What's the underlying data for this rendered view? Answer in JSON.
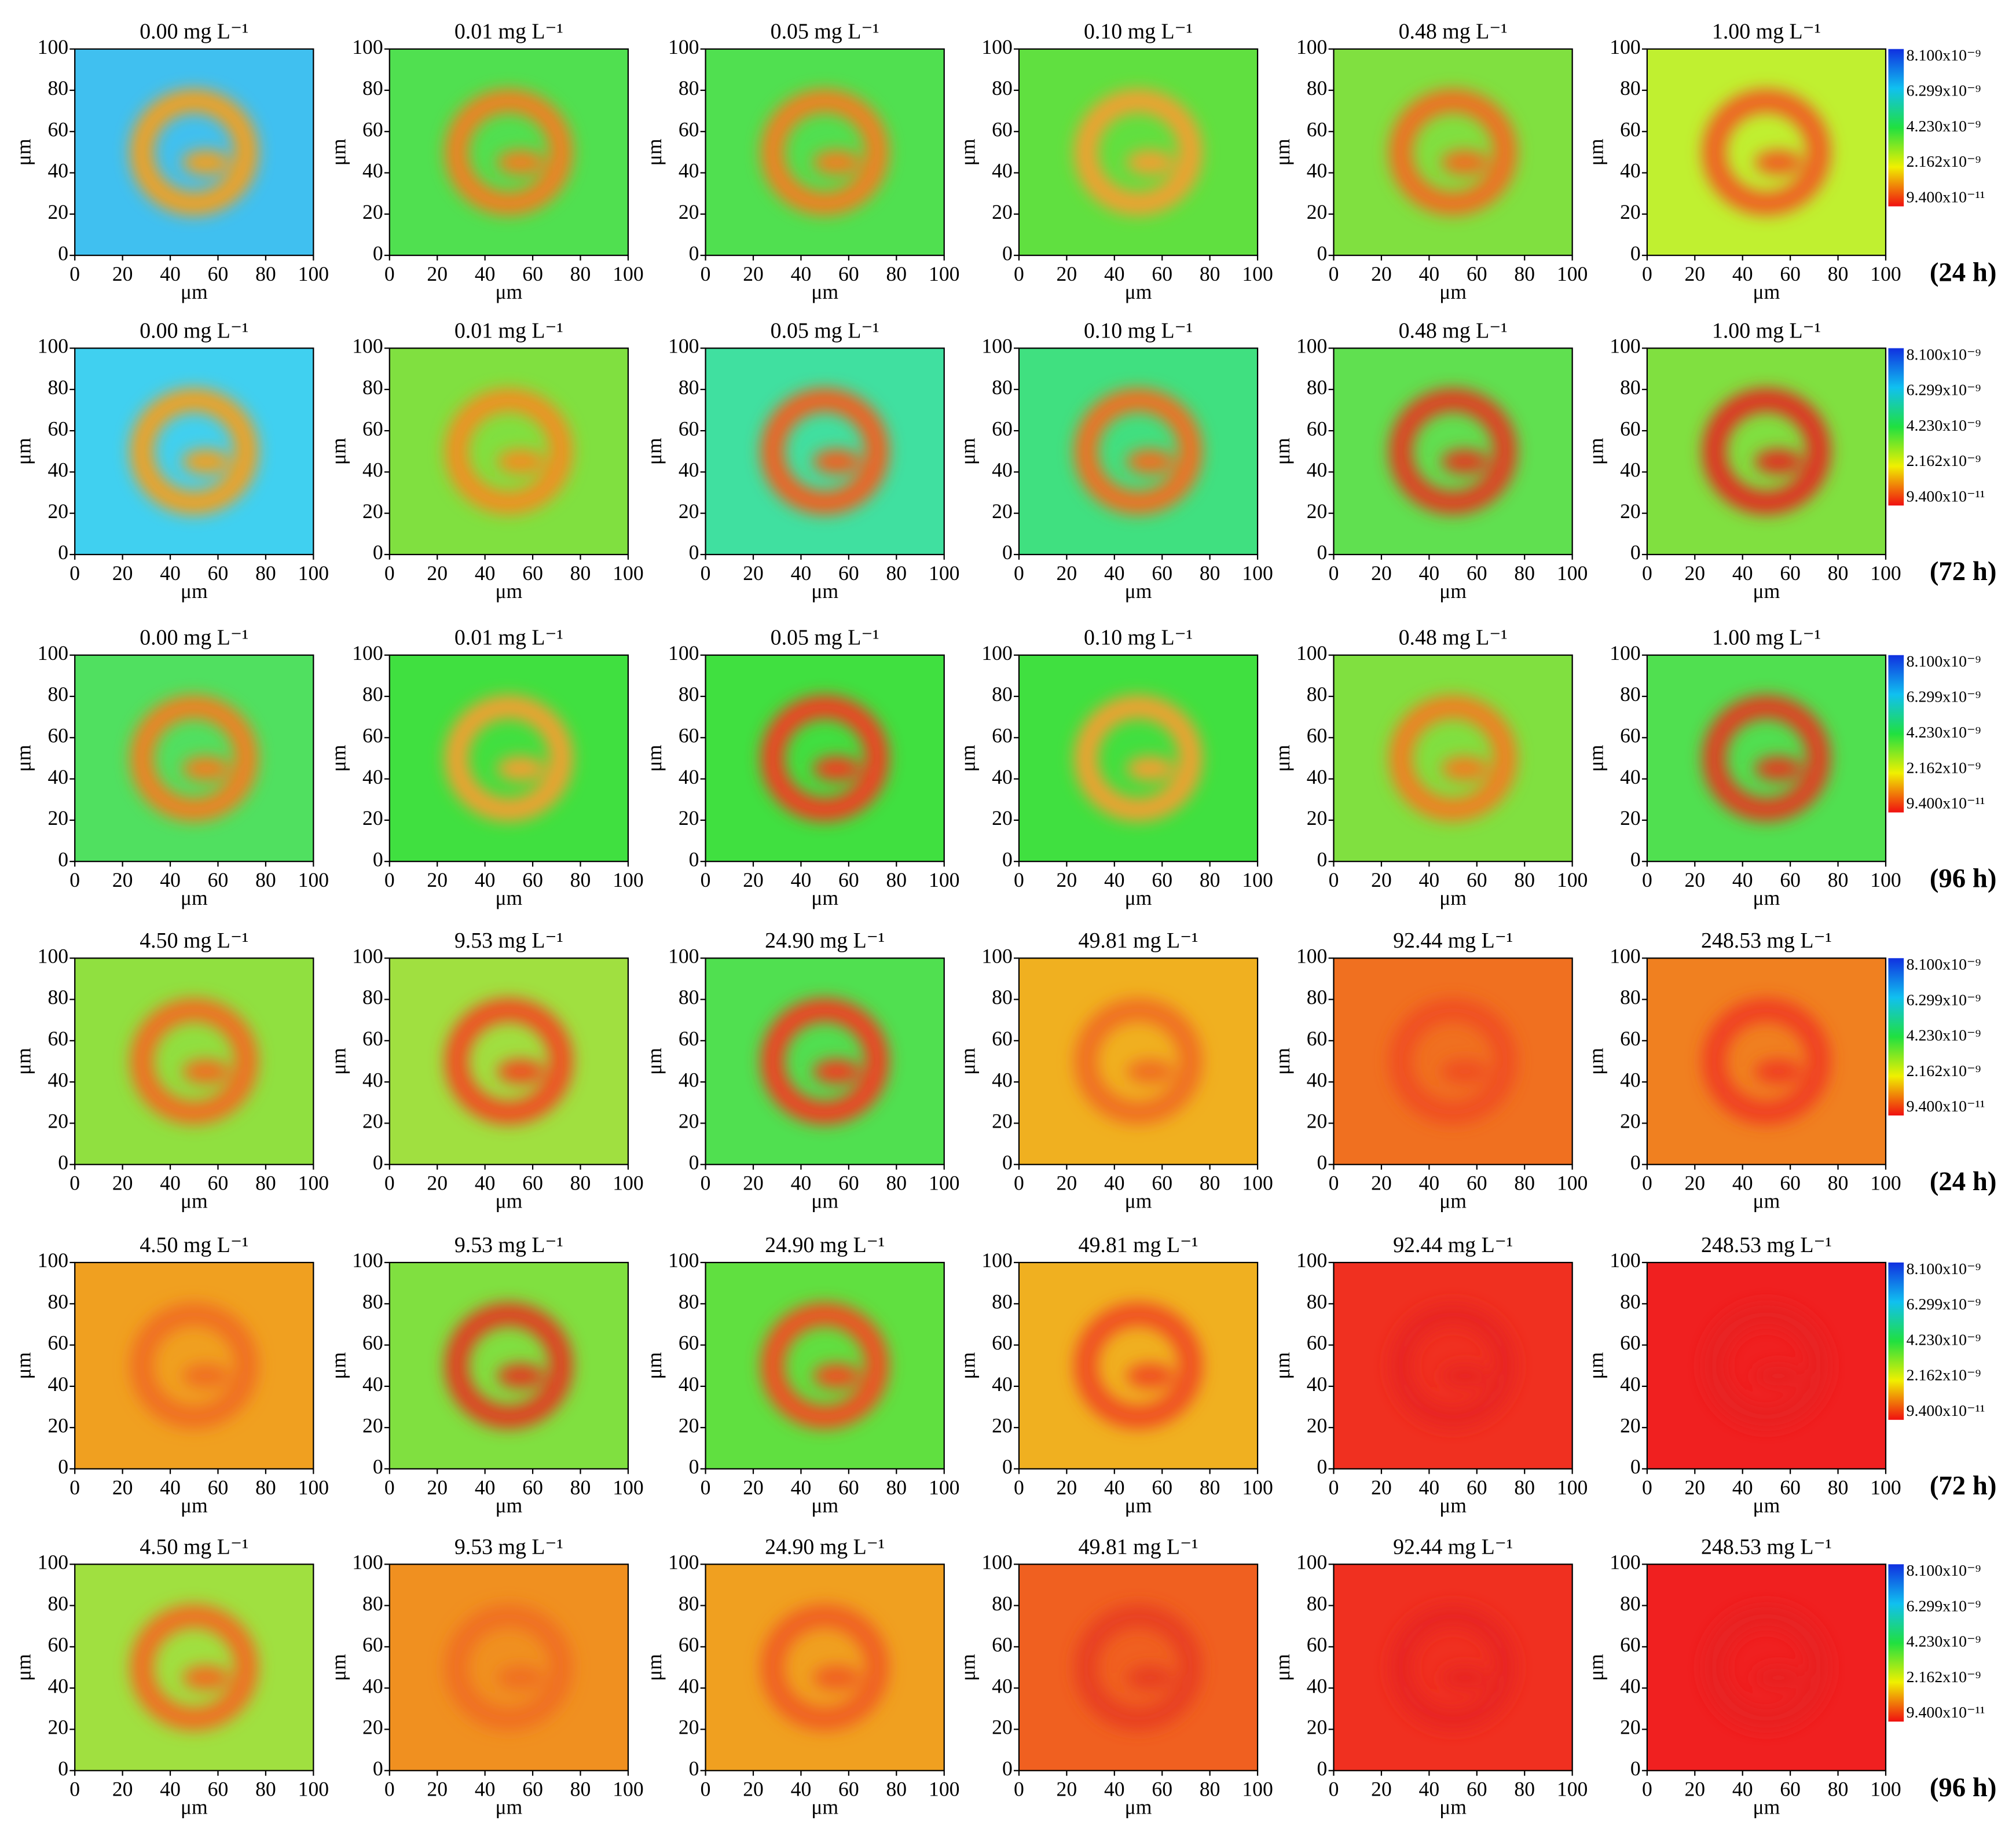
{
  "chart_data": [
    {
      "type": "heatmap",
      "title": "0.00 mg L⁻¹",
      "x_label": "μm",
      "y_label": "μm",
      "xlim": [
        0,
        100
      ],
      "ylim": [
        0,
        100
      ],
      "xticks": [
        0,
        20,
        40,
        60,
        80,
        100
      ],
      "yticks": [
        0,
        20,
        40,
        60,
        80,
        100
      ],
      "colors": [
        "#40c0f0",
        "#f0a020"
      ]
    },
    {
      "type": "heatmap",
      "title": "0.01 mg L⁻¹",
      "x_label": "μm",
      "y_label": "μm",
      "xlim": [
        0,
        100
      ],
      "ylim": [
        0,
        100
      ],
      "xticks": [
        0,
        20,
        40,
        60,
        80,
        100
      ],
      "yticks": [
        0,
        20,
        40,
        60,
        80,
        100
      ],
      "colors": [
        "#50e050",
        "#f08020"
      ]
    },
    {
      "type": "heatmap",
      "title": "0.05 mg L⁻¹",
      "x_label": "μm",
      "y_label": "μm",
      "xlim": [
        0,
        100
      ],
      "ylim": [
        0,
        100
      ],
      "xticks": [
        0,
        20,
        40,
        60,
        80,
        100
      ],
      "yticks": [
        0,
        20,
        40,
        60,
        80,
        100
      ],
      "colors": [
        "#50e050",
        "#f08020"
      ]
    },
    {
      "type": "heatmap",
      "title": "0.10 mg L⁻¹",
      "x_label": "μm",
      "y_label": "μm",
      "xlim": [
        0,
        100
      ],
      "ylim": [
        0,
        100
      ],
      "xticks": [
        0,
        20,
        40,
        60,
        80,
        100
      ],
      "yticks": [
        0,
        20,
        40,
        60,
        80,
        100
      ],
      "colors": [
        "#60e040",
        "#f0a030"
      ]
    },
    {
      "type": "heatmap",
      "title": "0.48 mg L⁻¹",
      "x_label": "μm",
      "y_label": "μm",
      "xlim": [
        0,
        100
      ],
      "ylim": [
        0,
        100
      ],
      "xticks": [
        0,
        20,
        40,
        60,
        80,
        100
      ],
      "yticks": [
        0,
        20,
        40,
        60,
        80,
        100
      ],
      "colors": [
        "#80e040",
        "#f07020"
      ]
    },
    {
      "type": "heatmap",
      "title": "1.00 mg L⁻¹",
      "x_label": "μm",
      "y_label": "μm",
      "xlim": [
        0,
        100
      ],
      "ylim": [
        0,
        100
      ],
      "xticks": [
        0,
        20,
        40,
        60,
        80,
        100
      ],
      "yticks": [
        0,
        20,
        40,
        60,
        80,
        100
      ],
      "colors": [
        "#c0f030",
        "#f06020"
      ]
    },
    {
      "type": "heatmap",
      "title": "0.00 mg L⁻¹",
      "x_label": "μm",
      "y_label": "μm",
      "xlim": [
        0,
        100
      ],
      "ylim": [
        0,
        100
      ],
      "xticks": [
        0,
        20,
        40,
        60,
        80,
        100
      ],
      "yticks": [
        0,
        20,
        40,
        60,
        80,
        100
      ],
      "colors": [
        "#40d0f0",
        "#f0a020"
      ]
    },
    {
      "type": "heatmap",
      "title": "0.01 mg L⁻¹",
      "x_label": "μm",
      "y_label": "μm",
      "xlim": [
        0,
        100
      ],
      "ylim": [
        0,
        100
      ],
      "xticks": [
        0,
        20,
        40,
        60,
        80,
        100
      ],
      "yticks": [
        0,
        20,
        40,
        60,
        80,
        100
      ],
      "colors": [
        "#80e040",
        "#f09020"
      ]
    },
    {
      "type": "heatmap",
      "title": "0.05 mg L⁻¹",
      "x_label": "μm",
      "y_label": "μm",
      "xlim": [
        0,
        100
      ],
      "ylim": [
        0,
        100
      ],
      "xticks": [
        0,
        20,
        40,
        60,
        80,
        100
      ],
      "yticks": [
        0,
        20,
        40,
        60,
        80,
        100
      ],
      "colors": [
        "#40e0a0",
        "#f06020"
      ]
    },
    {
      "type": "heatmap",
      "title": "0.10 mg L⁻¹",
      "x_label": "μm",
      "y_label": "μm",
      "xlim": [
        0,
        100
      ],
      "ylim": [
        0,
        100
      ],
      "xticks": [
        0,
        20,
        40,
        60,
        80,
        100
      ],
      "yticks": [
        0,
        20,
        40,
        60,
        80,
        100
      ],
      "colors": [
        "#40e080",
        "#f07020"
      ]
    },
    {
      "type": "heatmap",
      "title": "0.48 mg L⁻¹",
      "x_label": "μm",
      "y_label": "μm",
      "xlim": [
        0,
        100
      ],
      "ylim": [
        0,
        100
      ],
      "xticks": [
        0,
        20,
        40,
        60,
        80,
        100
      ],
      "yticks": [
        0,
        20,
        40,
        60,
        80,
        100
      ],
      "colors": [
        "#60e050",
        "#e04020"
      ]
    },
    {
      "type": "heatmap",
      "title": "1.00 mg L⁻¹",
      "x_label": "μm",
      "y_label": "μm",
      "xlim": [
        0,
        100
      ],
      "ylim": [
        0,
        100
      ],
      "xticks": [
        0,
        20,
        40,
        60,
        80,
        100
      ],
      "yticks": [
        0,
        20,
        40,
        60,
        80,
        100
      ],
      "colors": [
        "#80e040",
        "#e03020"
      ]
    },
    {
      "type": "heatmap",
      "title": "0.00 mg L⁻¹",
      "x_label": "μm",
      "y_label": "μm",
      "xlim": [
        0,
        100
      ],
      "ylim": [
        0,
        100
      ],
      "xticks": [
        0,
        20,
        40,
        60,
        80,
        100
      ],
      "yticks": [
        0,
        20,
        40,
        60,
        80,
        100
      ],
      "colors": [
        "#50e060",
        "#f08020"
      ]
    },
    {
      "type": "heatmap",
      "title": "0.01 mg L⁻¹",
      "x_label": "μm",
      "y_label": "μm",
      "xlim": [
        0,
        100
      ],
      "ylim": [
        0,
        100
      ],
      "xticks": [
        0,
        20,
        40,
        60,
        80,
        100
      ],
      "yticks": [
        0,
        20,
        40,
        60,
        80,
        100
      ],
      "colors": [
        "#40e040",
        "#f0a030"
      ]
    },
    {
      "type": "heatmap",
      "title": "0.05 mg L⁻¹",
      "x_label": "μm",
      "y_label": "μm",
      "xlim": [
        0,
        100
      ],
      "ylim": [
        0,
        100
      ],
      "xticks": [
        0,
        20,
        40,
        60,
        80,
        100
      ],
      "yticks": [
        0,
        20,
        40,
        60,
        80,
        100
      ],
      "colors": [
        "#40e040",
        "#f04020"
      ]
    },
    {
      "type": "heatmap",
      "title": "0.10 mg L⁻¹",
      "x_label": "μm",
      "y_label": "μm",
      "xlim": [
        0,
        100
      ],
      "ylim": [
        0,
        100
      ],
      "xticks": [
        0,
        20,
        40,
        60,
        80,
        100
      ],
      "yticks": [
        0,
        20,
        40,
        60,
        80,
        100
      ],
      "colors": [
        "#40e040",
        "#f0a030"
      ]
    },
    {
      "type": "heatmap",
      "title": "0.48 mg L⁻¹",
      "x_label": "μm",
      "y_label": "μm",
      "xlim": [
        0,
        100
      ],
      "ylim": [
        0,
        100
      ],
      "xticks": [
        0,
        20,
        40,
        60,
        80,
        100
      ],
      "yticks": [
        0,
        20,
        40,
        60,
        80,
        100
      ],
      "colors": [
        "#80e040",
        "#f08020"
      ]
    },
    {
      "type": "heatmap",
      "title": "1.00 mg L⁻¹",
      "x_label": "μm",
      "y_label": "μm",
      "xlim": [
        0,
        100
      ],
      "ylim": [
        0,
        100
      ],
      "xticks": [
        0,
        20,
        40,
        60,
        80,
        100
      ],
      "yticks": [
        0,
        20,
        40,
        60,
        80,
        100
      ],
      "colors": [
        "#50e050",
        "#e04020"
      ]
    },
    {
      "type": "heatmap",
      "title": "4.50 mg L⁻¹",
      "x_label": "μm",
      "y_label": "μm",
      "xlim": [
        0,
        100
      ],
      "ylim": [
        0,
        100
      ],
      "xticks": [
        0,
        20,
        40,
        60,
        80,
        100
      ],
      "yticks": [
        0,
        20,
        40,
        60,
        80,
        100
      ],
      "colors": [
        "#90e040",
        "#f07020"
      ]
    },
    {
      "type": "heatmap",
      "title": "9.53 mg L⁻¹",
      "x_label": "μm",
      "y_label": "μm",
      "xlim": [
        0,
        100
      ],
      "ylim": [
        0,
        100
      ],
      "xticks": [
        0,
        20,
        40,
        60,
        80,
        100
      ],
      "yticks": [
        0,
        20,
        40,
        60,
        80,
        100
      ],
      "colors": [
        "#a0e040",
        "#f05020"
      ]
    },
    {
      "type": "heatmap",
      "title": "24.90 mg L⁻¹",
      "x_label": "μm",
      "y_label": "μm",
      "xlim": [
        0,
        100
      ],
      "ylim": [
        0,
        100
      ],
      "xticks": [
        0,
        20,
        40,
        60,
        80,
        100
      ],
      "yticks": [
        0,
        20,
        40,
        60,
        80,
        100
      ],
      "colors": [
        "#50e050",
        "#f04020"
      ]
    },
    {
      "type": "heatmap",
      "title": "49.81 mg L⁻¹",
      "x_label": "μm",
      "y_label": "μm",
      "xlim": [
        0,
        100
      ],
      "ylim": [
        0,
        100
      ],
      "xticks": [
        0,
        20,
        40,
        60,
        80,
        100
      ],
      "yticks": [
        0,
        20,
        40,
        60,
        80,
        100
      ],
      "colors": [
        "#f0b020",
        "#f07020"
      ]
    },
    {
      "type": "heatmap",
      "title": "92.44 mg L⁻¹",
      "x_label": "μm",
      "y_label": "μm",
      "xlim": [
        0,
        100
      ],
      "ylim": [
        0,
        100
      ],
      "xticks": [
        0,
        20,
        40,
        60,
        80,
        100
      ],
      "yticks": [
        0,
        20,
        40,
        60,
        80,
        100
      ],
      "colors": [
        "#f07020",
        "#f05020"
      ]
    },
    {
      "type": "heatmap",
      "title": "248.53 mg L⁻¹",
      "x_label": "μm",
      "y_label": "μm",
      "xlim": [
        0,
        100
      ],
      "ylim": [
        0,
        100
      ],
      "xticks": [
        0,
        20,
        40,
        60,
        80,
        100
      ],
      "yticks": [
        0,
        20,
        40,
        60,
        80,
        100
      ],
      "colors": [
        "#f08020",
        "#f04020"
      ]
    },
    {
      "type": "heatmap",
      "title": "4.50 mg L⁻¹",
      "x_label": "μm",
      "y_label": "μm",
      "xlim": [
        0,
        100
      ],
      "ylim": [
        0,
        100
      ],
      "xticks": [
        0,
        20,
        40,
        60,
        80,
        100
      ],
      "yticks": [
        0,
        20,
        40,
        60,
        80,
        100
      ],
      "colors": [
        "#f0a020",
        "#f07020"
      ]
    },
    {
      "type": "heatmap",
      "title": "9.53 mg L⁻¹",
      "x_label": "μm",
      "y_label": "μm",
      "xlim": [
        0,
        100
      ],
      "ylim": [
        0,
        100
      ],
      "xticks": [
        0,
        20,
        40,
        60,
        80,
        100
      ],
      "yticks": [
        0,
        20,
        40,
        60,
        80,
        100
      ],
      "colors": [
        "#80e040",
        "#e04020"
      ]
    },
    {
      "type": "heatmap",
      "title": "24.90 mg L⁻¹",
      "x_label": "μm",
      "y_label": "μm",
      "xlim": [
        0,
        100
      ],
      "ylim": [
        0,
        100
      ],
      "xticks": [
        0,
        20,
        40,
        60,
        80,
        100
      ],
      "yticks": [
        0,
        20,
        40,
        60,
        80,
        100
      ],
      "colors": [
        "#60e040",
        "#f05020"
      ]
    },
    {
      "type": "heatmap",
      "title": "49.81 mg L⁻¹",
      "x_label": "μm",
      "y_label": "μm",
      "xlim": [
        0,
        100
      ],
      "ylim": [
        0,
        100
      ],
      "xticks": [
        0,
        20,
        40,
        60,
        80,
        100
      ],
      "yticks": [
        0,
        20,
        40,
        60,
        80,
        100
      ],
      "colors": [
        "#f0b020",
        "#f05020"
      ]
    },
    {
      "type": "heatmap",
      "title": "92.44 mg L⁻¹",
      "x_label": "μm",
      "y_label": "μm",
      "xlim": [
        0,
        100
      ],
      "ylim": [
        0,
        100
      ],
      "xticks": [
        0,
        20,
        40,
        60,
        80,
        100
      ],
      "yticks": [
        0,
        20,
        40,
        60,
        80,
        100
      ],
      "colors": [
        "#f03020",
        "#e82820"
      ]
    },
    {
      "type": "heatmap",
      "title": "248.53 mg L⁻¹",
      "x_label": "μm",
      "y_label": "μm",
      "xlim": [
        0,
        100
      ],
      "ylim": [
        0,
        100
      ],
      "xticks": [
        0,
        20,
        40,
        60,
        80,
        100
      ],
      "yticks": [
        0,
        20,
        40,
        60,
        80,
        100
      ],
      "colors": [
        "#f02020",
        "#e82020"
      ]
    },
    {
      "type": "heatmap",
      "title": "4.50 mg L⁻¹",
      "x_label": "μm",
      "y_label": "μm",
      "xlim": [
        0,
        100
      ],
      "ylim": [
        0,
        100
      ],
      "xticks": [
        0,
        20,
        40,
        60,
        80,
        100
      ],
      "yticks": [
        0,
        20,
        40,
        60,
        80,
        100
      ],
      "colors": [
        "#a0e040",
        "#f07020"
      ]
    },
    {
      "type": "heatmap",
      "title": "9.53 mg L⁻¹",
      "x_label": "μm",
      "y_label": "μm",
      "xlim": [
        0,
        100
      ],
      "ylim": [
        0,
        100
      ],
      "xticks": [
        0,
        20,
        40,
        60,
        80,
        100
      ],
      "yticks": [
        0,
        20,
        40,
        60,
        80,
        100
      ],
      "colors": [
        "#f09020",
        "#f07020"
      ]
    },
    {
      "type": "heatmap",
      "title": "24.90 mg L⁻¹",
      "x_label": "μm",
      "y_label": "μm",
      "xlim": [
        0,
        100
      ],
      "ylim": [
        0,
        100
      ],
      "xticks": [
        0,
        20,
        40,
        60,
        80,
        100
      ],
      "yticks": [
        0,
        20,
        40,
        60,
        80,
        100
      ],
      "colors": [
        "#f0a020",
        "#f06020"
      ]
    },
    {
      "type": "heatmap",
      "title": "49.81 mg L⁻¹",
      "x_label": "μm",
      "y_label": "μm",
      "xlim": [
        0,
        100
      ],
      "ylim": [
        0,
        100
      ],
      "xticks": [
        0,
        20,
        40,
        60,
        80,
        100
      ],
      "yticks": [
        0,
        20,
        40,
        60,
        80,
        100
      ],
      "colors": [
        "#f06020",
        "#e84020"
      ]
    },
    {
      "type": "heatmap",
      "title": "92.44 mg L⁻¹",
      "x_label": "μm",
      "y_label": "μm",
      "xlim": [
        0,
        100
      ],
      "ylim": [
        0,
        100
      ],
      "xticks": [
        0,
        20,
        40,
        60,
        80,
        100
      ],
      "yticks": [
        0,
        20,
        40,
        60,
        80,
        100
      ],
      "colors": [
        "#f03020",
        "#e82820"
      ]
    },
    {
      "type": "heatmap",
      "title": "248.53 mg L⁻¹",
      "x_label": "μm",
      "y_label": "μm",
      "xlim": [
        0,
        100
      ],
      "ylim": [
        0,
        100
      ],
      "xticks": [
        0,
        20,
        40,
        60,
        80,
        100
      ],
      "yticks": [
        0,
        20,
        40,
        60,
        80,
        100
      ],
      "colors": [
        "#f02020",
        "#e82020"
      ]
    }
  ],
  "time_labels": [
    "(24 h)",
    "(72 h)",
    "(96 h)",
    "(24 h)",
    "(72 h)",
    "(96 h)"
  ],
  "colorbar": {
    "labels": [
      "8.100x10⁻⁹",
      "6.299x10⁻⁹",
      "4.230x10⁻⁹",
      "2.162x10⁻⁹",
      "9.400x10⁻¹¹"
    ],
    "colors": [
      "#1030e0",
      "#10c0f0",
      "#20e040",
      "#f0f000",
      "#f01010"
    ]
  }
}
